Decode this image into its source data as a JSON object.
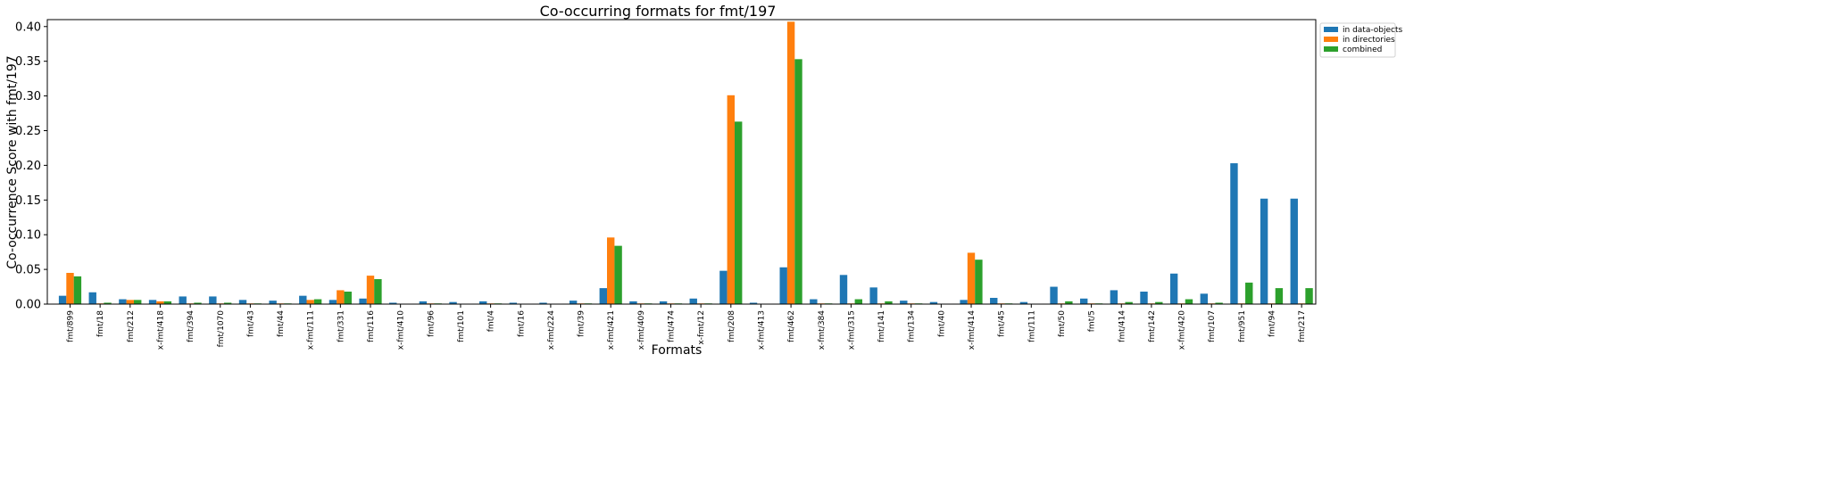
{
  "chart_data": {
    "type": "bar",
    "title": "Co-occurring formats for fmt/197",
    "xlabel": "Formats",
    "ylabel": "Co-occurrence Score with fmt/197",
    "ylim": [
      0,
      0.41
    ],
    "yticks": [
      "0.00",
      "0.05",
      "0.10",
      "0.15",
      "0.20",
      "0.25",
      "0.30",
      "0.35",
      "0.40"
    ],
    "grid": false,
    "legend_position": "outside-top-right",
    "categories": [
      "fmt/899",
      "fmt/18",
      "fmt/212",
      "x-fmt/418",
      "fmt/394",
      "fmt/1070",
      "fmt/43",
      "fmt/44",
      "x-fmt/111",
      "fmt/331",
      "fmt/116",
      "x-fmt/410",
      "fmt/96",
      "fmt/101",
      "fmt/4",
      "fmt/16",
      "x-fmt/224",
      "fmt/39",
      "x-fmt/421",
      "x-fmt/409",
      "fmt/474",
      "x-fmt/12",
      "fmt/208",
      "x-fmt/413",
      "fmt/462",
      "x-fmt/384",
      "x-fmt/315",
      "fmt/141",
      "fmt/134",
      "fmt/40",
      "x-fmt/414",
      "fmt/45",
      "fmt/111",
      "fmt/50",
      "fmt/5",
      "fmt/414",
      "fmt/142",
      "x-fmt/420",
      "fmt/107",
      "fmt/951",
      "fmt/94",
      "fmt/217"
    ],
    "series": [
      {
        "name": "in data-objects",
        "color": "#1f77b4",
        "values": [
          0.012,
          0.017,
          0.007,
          0.006,
          0.011,
          0.011,
          0.006,
          0.005,
          0.012,
          0.006,
          0.008,
          0.002,
          0.004,
          0.003,
          0.004,
          0.002,
          0.002,
          0.005,
          0.023,
          0.004,
          0.004,
          0.008,
          0.048,
          0.002,
          0.053,
          0.007,
          0.042,
          0.024,
          0.005,
          0.003,
          0.006,
          0.009,
          0.003,
          0.025,
          0.008,
          0.02,
          0.018,
          0.044,
          0.015,
          0.203,
          0.152,
          0.152
        ]
      },
      {
        "name": "in directories",
        "color": "#ff7f0e",
        "values": [
          0.045,
          0.001,
          0.006,
          0.004,
          0.001,
          0.001,
          0.001,
          0.001,
          0.006,
          0.02,
          0.041,
          0.0,
          0.001,
          0.0,
          0.001,
          0.0,
          0.0,
          0.001,
          0.096,
          0.001,
          0.001,
          0.001,
          0.301,
          0.0,
          0.407,
          0.001,
          0.001,
          0.001,
          0.001,
          0.0,
          0.074,
          0.001,
          0.0,
          0.001,
          0.001,
          0.001,
          0.001,
          0.001,
          0.001,
          0.001,
          0.001,
          0.001
        ]
      },
      {
        "name": "combined",
        "color": "#2ca02c",
        "values": [
          0.04,
          0.002,
          0.006,
          0.004,
          0.002,
          0.002,
          0.001,
          0.001,
          0.007,
          0.018,
          0.036,
          0.0,
          0.001,
          0.0,
          0.001,
          0.0,
          0.0,
          0.001,
          0.084,
          0.001,
          0.001,
          0.001,
          0.263,
          0.0,
          0.353,
          0.001,
          0.007,
          0.004,
          0.001,
          0.0,
          0.064,
          0.001,
          0.0,
          0.004,
          0.001,
          0.003,
          0.003,
          0.007,
          0.002,
          0.031,
          0.023,
          0.023
        ]
      }
    ]
  }
}
